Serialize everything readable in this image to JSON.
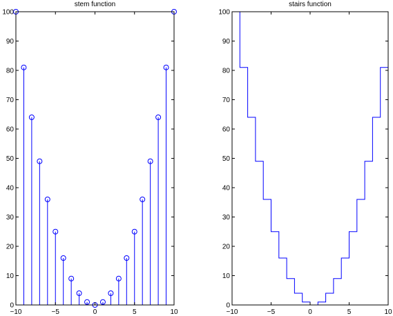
{
  "chart_data": [
    {
      "type": "stem",
      "title": "stem function",
      "xlabel": "",
      "ylabel": "",
      "xlim": [
        -10,
        10
      ],
      "ylim": [
        0,
        100
      ],
      "grid": false,
      "color": "#0000ff",
      "marker": "circle",
      "x": [
        -10,
        -9,
        -8,
        -7,
        -6,
        -5,
        -4,
        -3,
        -2,
        -1,
        0,
        1,
        2,
        3,
        4,
        5,
        6,
        7,
        8,
        9,
        10
      ],
      "values": [
        100,
        81,
        64,
        49,
        36,
        25,
        16,
        9,
        4,
        1,
        0,
        1,
        4,
        9,
        16,
        25,
        36,
        49,
        64,
        81,
        100
      ],
      "xticks": [
        "−10",
        "−5",
        "0",
        "5",
        "10"
      ],
      "yticks": [
        "0",
        "10",
        "20",
        "30",
        "40",
        "50",
        "60",
        "70",
        "80",
        "90",
        "100"
      ]
    },
    {
      "type": "stairs",
      "title": "stairs function",
      "xlabel": "",
      "ylabel": "",
      "xlim": [
        -10,
        10
      ],
      "ylim": [
        0,
        100
      ],
      "grid": false,
      "color": "#0000ff",
      "x": [
        -10,
        -9,
        -8,
        -7,
        -6,
        -5,
        -4,
        -3,
        -2,
        -1,
        0,
        1,
        2,
        3,
        4,
        5,
        6,
        7,
        8,
        9,
        10
      ],
      "values": [
        100,
        81,
        64,
        49,
        36,
        25,
        16,
        9,
        4,
        1,
        0,
        1,
        4,
        9,
        16,
        25,
        36,
        49,
        64,
        81,
        100
      ],
      "xticks": [
        "−10",
        "−5",
        "0",
        "5",
        "10"
      ],
      "yticks": [
        "0",
        "10",
        "20",
        "30",
        "40",
        "50",
        "60",
        "70",
        "80",
        "90",
        "100"
      ]
    }
  ]
}
